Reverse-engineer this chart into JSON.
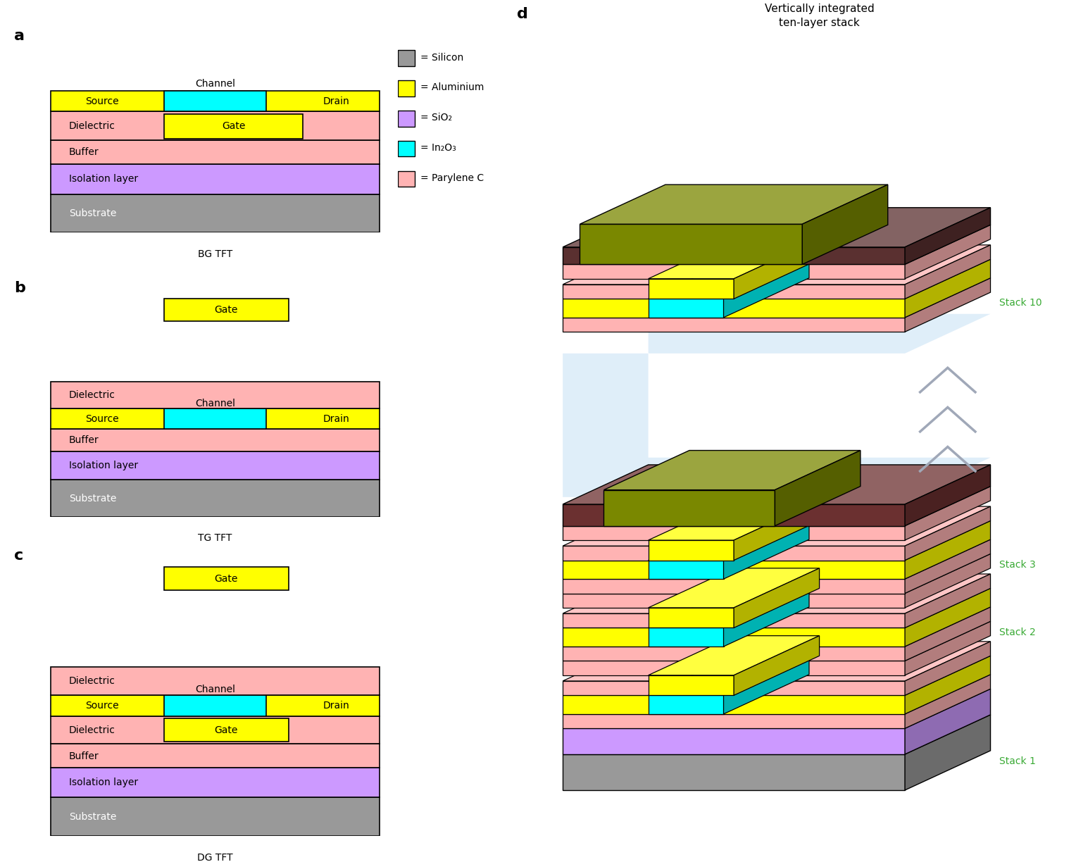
{
  "colors": {
    "silicon": "#999999",
    "aluminium": "#FFFF00",
    "sio2": "#CC99FF",
    "in2o3": "#00FFFF",
    "parylene": "#FFB3B3",
    "black": "#000000",
    "white": "#FFFFFF",
    "olive_top": "#808000",
    "olive_front": "#6B6B00",
    "olive_side": "#555500",
    "dark_pink_top": "#8B3A3A",
    "label_green": "#3aaa35",
    "gap_blue": "#d8eaf8",
    "arrow_gray": "#a0a8b8"
  },
  "legend_items": [
    {
      "label": "= Silicon",
      "color": "#999999"
    },
    {
      "label": "= Aluminium",
      "color": "#FFFF00"
    },
    {
      "label": "= SiO₂",
      "color": "#CC99FF"
    },
    {
      "label": "= In₂O₃",
      "color": "#00FFFF"
    },
    {
      "label": "= Parylene C",
      "color": "#FFB3B3"
    }
  ],
  "tft_labels": [
    "BG TFT",
    "TG TFT",
    "DG TFT"
  ],
  "d_title": "Vertically integrated\nten-layer stack",
  "stack_labels": [
    "Stack 1",
    "Stack 2",
    "Stack 3",
    "Stack 10"
  ]
}
